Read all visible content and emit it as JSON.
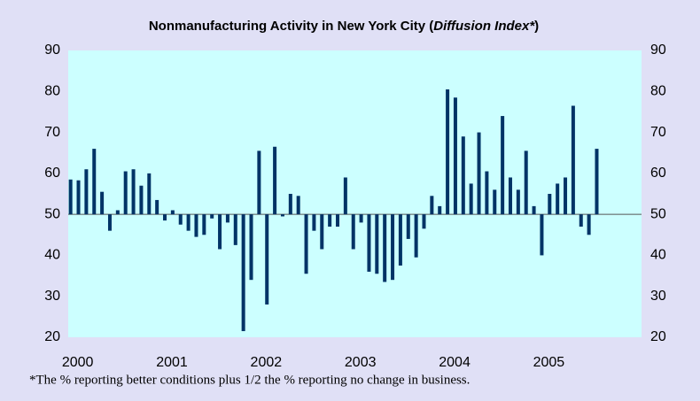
{
  "chart_data": {
    "type": "bar",
    "title": "Nonmanufacturing Activity in New York City (",
    "title_italic": "Diffusion Index*",
    "title_end": ")",
    "footnote": "*The % reporting better conditions plus 1/2 the % reporting no change in business.",
    "categories": [
      "2000",
      null,
      null,
      null,
      null,
      null,
      null,
      null,
      null,
      null,
      null,
      null,
      "2001",
      null,
      null,
      null,
      null,
      null,
      null,
      null,
      null,
      null,
      null,
      null,
      "2002",
      null,
      null,
      null,
      null,
      null,
      null,
      null,
      null,
      null,
      null,
      null,
      "2003",
      null,
      null,
      null,
      null,
      null,
      null,
      null,
      null,
      null,
      null,
      null,
      "2004",
      null,
      null,
      null,
      null,
      null,
      null,
      null,
      null,
      null,
      null,
      null,
      "2005",
      null,
      null,
      null,
      null,
      null,
      null,
      null,
      null,
      null,
      null,
      null
    ],
    "values": [
      58.5,
      58.3,
      61,
      66,
      55.5,
      46,
      51,
      60.5,
      61,
      57,
      60,
      53.5,
      48.5,
      51,
      47.5,
      46,
      44.5,
      45,
      49,
      41.5,
      48,
      42.5,
      21.5,
      34,
      65.5,
      28,
      66.5,
      49.5,
      55,
      54.5,
      35.5,
      46,
      41.5,
      47,
      47,
      59,
      41.5,
      48,
      36,
      35.5,
      33.5,
      34,
      37.5,
      44,
      39.5,
      46.5,
      54.5,
      52,
      80.5,
      78.5,
      69,
      57.5,
      70,
      60.5,
      56,
      74,
      59,
      56,
      65.5,
      52,
      40,
      55,
      57.5,
      59,
      76.5,
      47,
      45,
      66,
      null,
      null,
      null,
      null
    ],
    "color": "#003366",
    "bar_base": 50,
    "ylim": [
      20,
      90
    ],
    "yticks": [
      20,
      30,
      40,
      50,
      60,
      70,
      80,
      90
    ],
    "y2lim": [
      20,
      90
    ],
    "y2ticks": [
      20,
      30,
      40,
      50,
      60,
      70,
      80,
      90
    ],
    "plot_background": "#ccffff",
    "grid": false
  }
}
